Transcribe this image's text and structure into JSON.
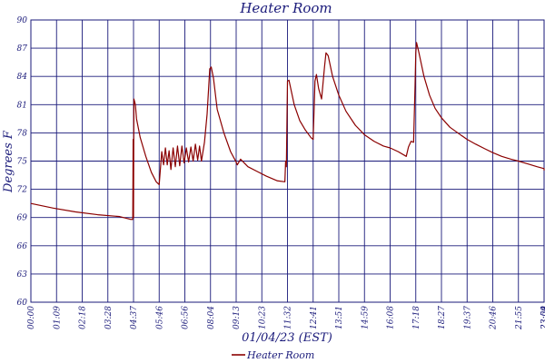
{
  "chart_data": {
    "type": "line",
    "title": "Heater Room",
    "xlabel": "01/04/23 (EST)",
    "ylabel": "Degrees F",
    "y_ticks": [
      "60",
      "63",
      "66",
      "69",
      "72",
      "75",
      "78",
      "81",
      "84",
      "87",
      "90"
    ],
    "x_ticks": [
      "00:00",
      "01:09",
      "02:18",
      "03:28",
      "04:37",
      "05:46",
      "06:56",
      "08:04",
      "09:13",
      "10:23",
      "11:32",
      "12:41",
      "13:51",
      "14:59",
      "16:08",
      "17:18",
      "18:27",
      "19:37",
      "20:46",
      "21:55",
      "23:04",
      "23:59"
    ],
    "grid": true,
    "legend": "bottom",
    "colors": {
      "series": "#8b0000",
      "grid": "#1a1a7a",
      "text": "#1a1a7a"
    },
    "series": [
      {
        "name": "Heater Room",
        "points": [
          [
            "00:00",
            70.5
          ],
          [
            "01:00",
            70.0
          ],
          [
            "02:00",
            69.6
          ],
          [
            "03:00",
            69.3
          ],
          [
            "04:00",
            69.1
          ],
          [
            "04:30",
            68.8
          ],
          [
            "04:35",
            68.8
          ],
          [
            "04:36",
            77.3
          ],
          [
            "04:37",
            69.0
          ],
          [
            "04:38",
            81.6
          ],
          [
            "04:42",
            81.0
          ],
          [
            "04:45",
            79.5
          ],
          [
            "04:55",
            77.5
          ],
          [
            "05:10",
            75.5
          ],
          [
            "05:25",
            73.8
          ],
          [
            "05:38",
            72.8
          ],
          [
            "05:46",
            72.5
          ],
          [
            "05:53",
            76.0
          ],
          [
            "05:58",
            74.6
          ],
          [
            "06:03",
            76.4
          ],
          [
            "06:08",
            74.6
          ],
          [
            "06:13",
            76.1
          ],
          [
            "06:18",
            74.1
          ],
          [
            "06:24",
            76.4
          ],
          [
            "06:30",
            74.4
          ],
          [
            "06:36",
            76.6
          ],
          [
            "06:42",
            74.5
          ],
          [
            "06:48",
            76.6
          ],
          [
            "06:54",
            74.8
          ],
          [
            "07:00",
            76.4
          ],
          [
            "07:06",
            74.9
          ],
          [
            "07:12",
            76.5
          ],
          [
            "07:18",
            75.0
          ],
          [
            "07:24",
            76.8
          ],
          [
            "07:30",
            75.1
          ],
          [
            "07:35",
            76.6
          ],
          [
            "07:40",
            75.0
          ],
          [
            "07:48",
            77.0
          ],
          [
            "07:55",
            80.0
          ],
          [
            "08:02",
            84.8
          ],
          [
            "08:06",
            85.0
          ],
          [
            "08:12",
            83.8
          ],
          [
            "08:22",
            80.5
          ],
          [
            "08:40",
            78.0
          ],
          [
            "08:58",
            76.0
          ],
          [
            "09:13",
            74.9
          ],
          [
            "09:16",
            74.6
          ],
          [
            "09:25",
            75.2
          ],
          [
            "09:45",
            74.4
          ],
          [
            "10:10",
            73.9
          ],
          [
            "10:35",
            73.4
          ],
          [
            "11:05",
            72.9
          ],
          [
            "11:25",
            72.8
          ],
          [
            "11:27",
            75.0
          ],
          [
            "11:29",
            74.4
          ],
          [
            "11:32",
            83.5
          ],
          [
            "11:36",
            83.6
          ],
          [
            "11:50",
            81.0
          ],
          [
            "12:05",
            79.3
          ],
          [
            "12:20",
            78.3
          ],
          [
            "12:35",
            77.5
          ],
          [
            "12:41",
            77.3
          ],
          [
            "12:46",
            83.5
          ],
          [
            "12:50",
            84.2
          ],
          [
            "12:56",
            82.7
          ],
          [
            "13:04",
            81.6
          ],
          [
            "13:12",
            85.0
          ],
          [
            "13:16",
            86.5
          ],
          [
            "13:22",
            86.2
          ],
          [
            "13:34",
            84.0
          ],
          [
            "13:51",
            82.0
          ],
          [
            "14:10",
            80.3
          ],
          [
            "14:35",
            78.8
          ],
          [
            "14:59",
            77.8
          ],
          [
            "15:25",
            77.1
          ],
          [
            "15:50",
            76.6
          ],
          [
            "16:08",
            76.4
          ],
          [
            "16:30",
            76.0
          ],
          [
            "16:52",
            75.5
          ],
          [
            "16:58",
            76.5
          ],
          [
            "17:05",
            77.1
          ],
          [
            "17:12",
            77.0
          ],
          [
            "17:16",
            83.0
          ],
          [
            "17:18",
            86.5
          ],
          [
            "17:20",
            87.6
          ],
          [
            "17:26",
            86.6
          ],
          [
            "17:40",
            84.0
          ],
          [
            "17:55",
            82.0
          ],
          [
            "18:10",
            80.6
          ],
          [
            "18:27",
            79.6
          ],
          [
            "18:50",
            78.6
          ],
          [
            "19:15",
            77.9
          ],
          [
            "19:37",
            77.3
          ],
          [
            "20:00",
            76.8
          ],
          [
            "20:25",
            76.3
          ],
          [
            "20:46",
            75.9
          ],
          [
            "21:10",
            75.5
          ],
          [
            "21:35",
            75.2
          ],
          [
            "21:55",
            75.0
          ],
          [
            "22:20",
            74.7
          ],
          [
            "22:45",
            74.4
          ],
          [
            "23:10",
            74.2
          ],
          [
            "23:35",
            74.1
          ],
          [
            "23:59",
            74.0
          ]
        ]
      }
    ]
  }
}
